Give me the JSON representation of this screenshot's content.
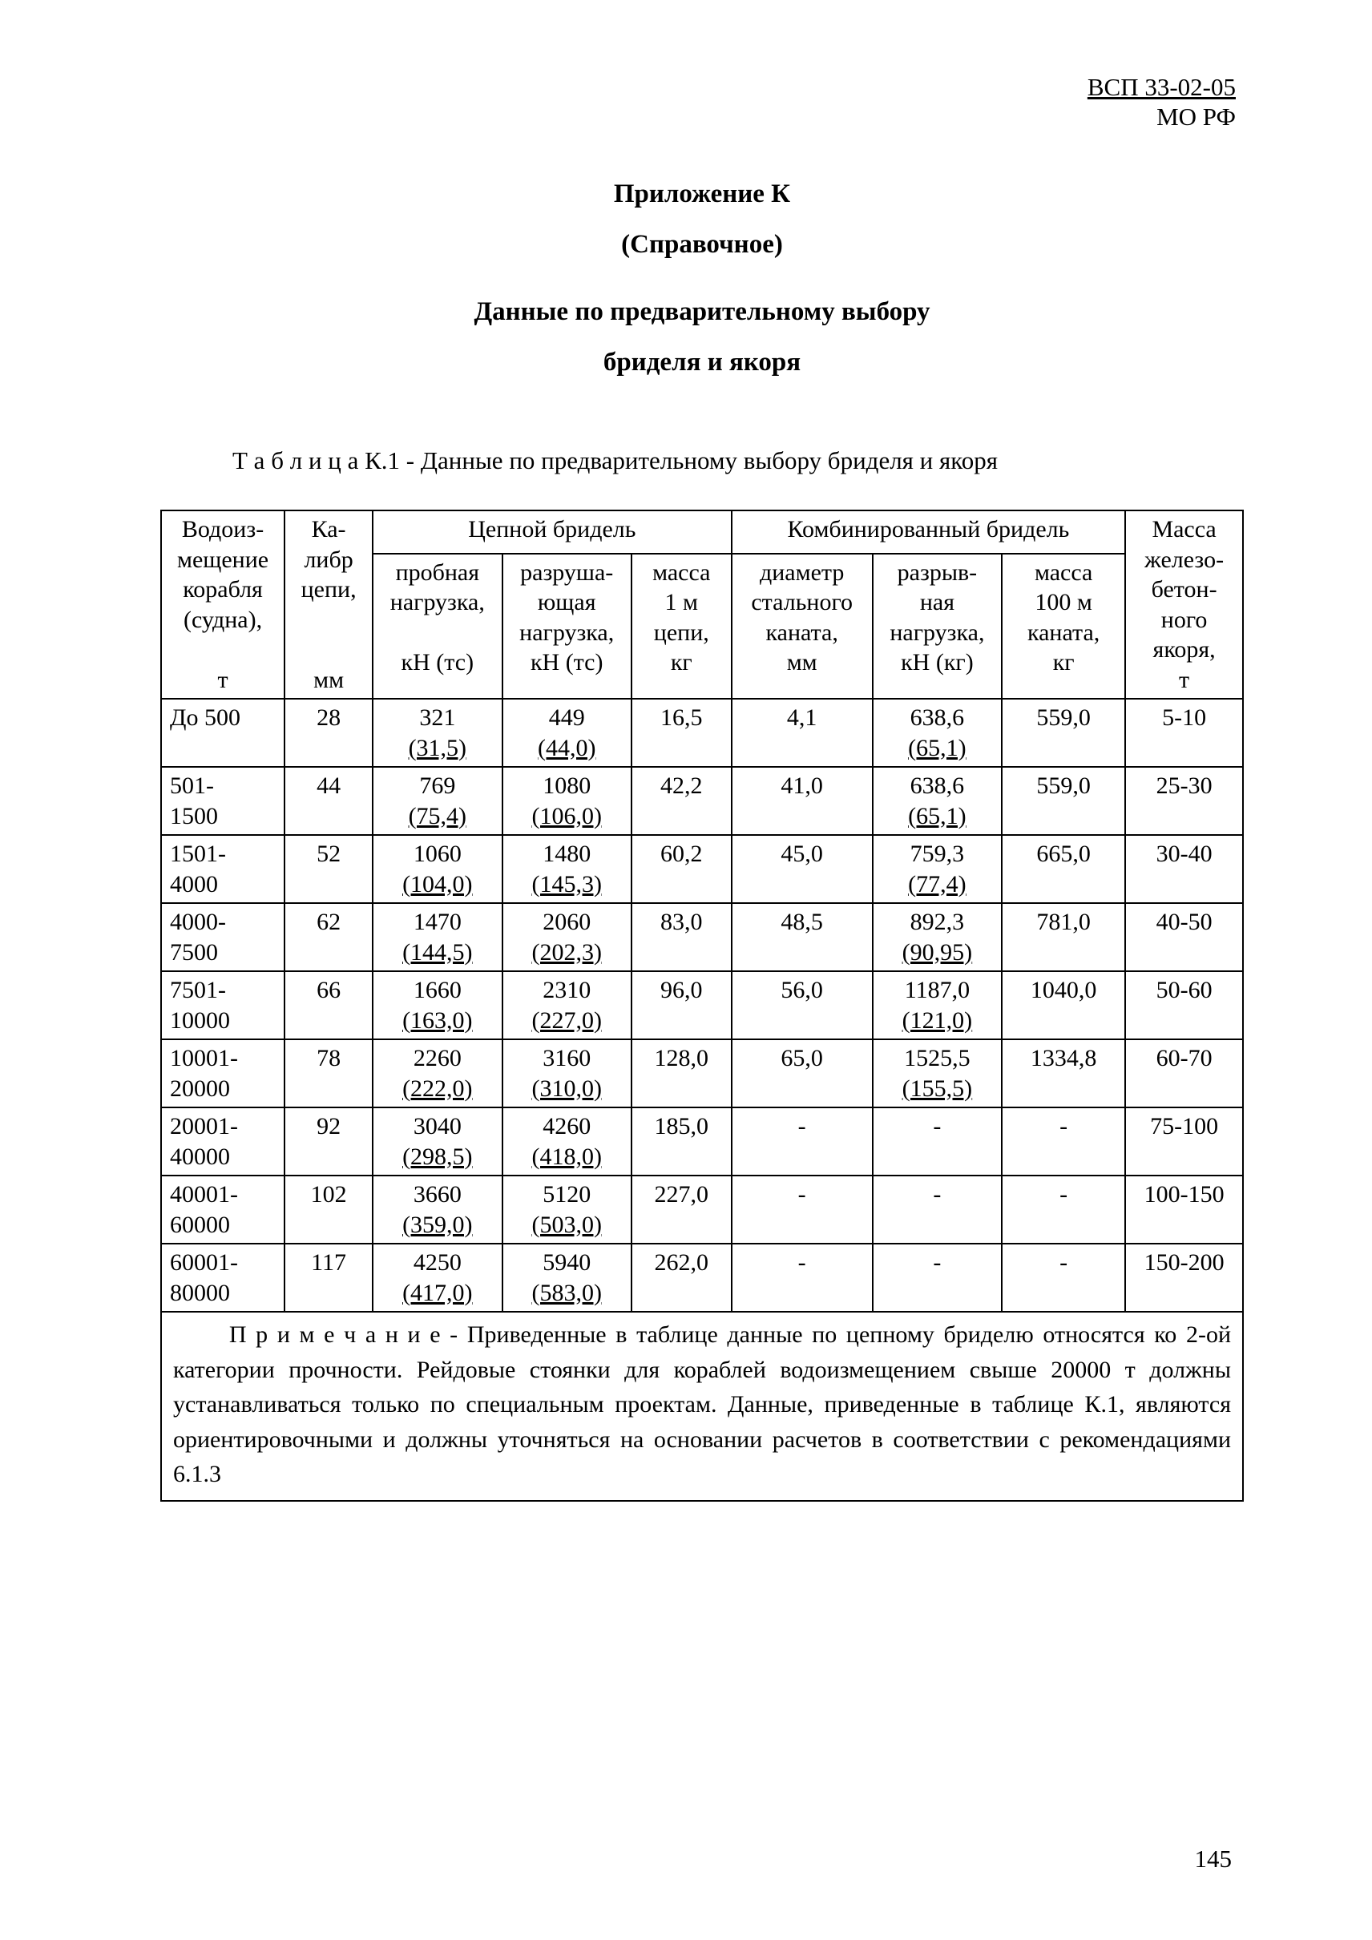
{
  "doc_id": {
    "line1": "ВСП 33-02-05",
    "line2": "МО РФ"
  },
  "headings": {
    "h1": "Приложение К",
    "h2": "(Справочное)",
    "h3": "Данные по предварительному выбору",
    "h4": "бриделя и якоря"
  },
  "caption_prefix": "Т а б л и ц а К.1 - ",
  "caption_text": "Данные по предварительному выбору бриделя и якоря",
  "col_widths": [
    "10.5%",
    "7.5%",
    "11%",
    "11%",
    "8.5%",
    "12%",
    "11%",
    "10.5%",
    "10%"
  ],
  "group_headers": {
    "c1": "Водоиз-\nмещение\nкорабля\n(судна),\n\nт",
    "c2": "Ка-\nлибр\nцепи,\n\n\nмм",
    "g1": "Цепной бридель",
    "g2": "Комбинированный бридель",
    "c9": "Масса\nжелезо-\nбетон-\nного\nякоря,\nт"
  },
  "sub_headers": {
    "c3": "пробная\nнагрузка,\n\nкН (тс)",
    "c4": "разруша-\nющая\nнагрузка,\nкН (тс)",
    "c5": "масса\n1 м\nцепи,\nкг",
    "c6": "диаметр\nстального\nканата,\nмм",
    "c7": "разрыв-\nная\nнагрузка,\nкН (кг)",
    "c8": "масса\n100 м\nканата,\nкг"
  },
  "rows": [
    {
      "c1": "До 500",
      "c2": "28",
      "c3a": "321",
      "c3b": "(31,5)",
      "c4a": "449",
      "c4b": "(44,0)",
      "c5": "16,5",
      "c6": "4,1",
      "c7a": "638,6",
      "c7b": "(65,1)",
      "c8": "559,0",
      "c9": "5-10"
    },
    {
      "c1": "501-\n1500",
      "c2": "44",
      "c3a": "769",
      "c3b": "(75,4)",
      "c4a": "1080",
      "c4b": "(106,0)",
      "c5": "42,2",
      "c6": "41,0",
      "c7a": "638,6",
      "c7b": "(65,1)",
      "c8": "559,0",
      "c9": "25-30"
    },
    {
      "c1": "1501-\n4000",
      "c2": "52",
      "c3a": "1060",
      "c3b": "(104,0)",
      "c4a": "1480",
      "c4b": "(145,3)",
      "c5": "60,2",
      "c6": "45,0",
      "c7a": "759,3",
      "c7b": "(77,4)",
      "c8": "665,0",
      "c9": "30-40"
    },
    {
      "c1": "4000-\n7500",
      "c2": "62",
      "c3a": "1470",
      "c3b": "(144,5)",
      "c4a": "2060",
      "c4b": "(202,3)",
      "c5": "83,0",
      "c6": "48,5",
      "c7a": "892,3",
      "c7b": "(90,95)",
      "c8": "781,0",
      "c9": "40-50"
    },
    {
      "c1": "7501-\n10000",
      "c2": "66",
      "c3a": "1660",
      "c3b": "(163,0)",
      "c4a": "2310",
      "c4b": "(227,0)",
      "c5": "96,0",
      "c6": "56,0",
      "c7a": "1187,0",
      "c7b": "(121,0)",
      "c8": "1040,0",
      "c9": "50-60"
    },
    {
      "c1": "10001-\n20000",
      "c2": "78",
      "c3a": "2260",
      "c3b": "(222,0)",
      "c4a": "3160",
      "c4b": "(310,0)",
      "c5": "128,0",
      "c6": "65,0",
      "c7a": "1525,5",
      "c7b": "(155,5)",
      "c8": "1334,8",
      "c9": "60-70"
    },
    {
      "c1": "20001-\n40000",
      "c2": "92",
      "c3a": "3040",
      "c3b": "(298,5)",
      "c4a": "4260",
      "c4b": "(418,0)",
      "c5": "185,0",
      "c6": "-",
      "c7a": "-",
      "c7b": "",
      "c8": "-",
      "c9": "75-100"
    },
    {
      "c1": "40001-\n60000",
      "c2": "102",
      "c3a": "3660",
      "c3b": "(359,0)",
      "c4a": "5120",
      "c4b": "(503,0)",
      "c5": "227,0",
      "c6": "-",
      "c7a": "-",
      "c7b": "",
      "c8": "-",
      "c9": "100-150"
    },
    {
      "c1": "60001-\n80000",
      "c2": "117",
      "c3a": "4250",
      "c3b": "(417,0)",
      "c4a": "5940",
      "c4b": "(583,0)",
      "c5": "262,0",
      "c6": "-",
      "c7a": "-",
      "c7b": "",
      "c8": "-",
      "c9": "150-200"
    }
  ],
  "note_label": "П р и м е ч а н и е - ",
  "note_text": "Приведенные в таблице данные по цепному бриделю относятся ко  2-ой категории прочности. Рейдовые  стоянки для  кораблей  водоизмещением  свыше 20000 т должны устанавливаться только по специальным проектам. Данные,  приведен­ные в таблице К.1, являются ориентировочными и должны уточняться на основании рас­четов в соответствии с рекомендациями 6.1.3",
  "page_number": "145"
}
